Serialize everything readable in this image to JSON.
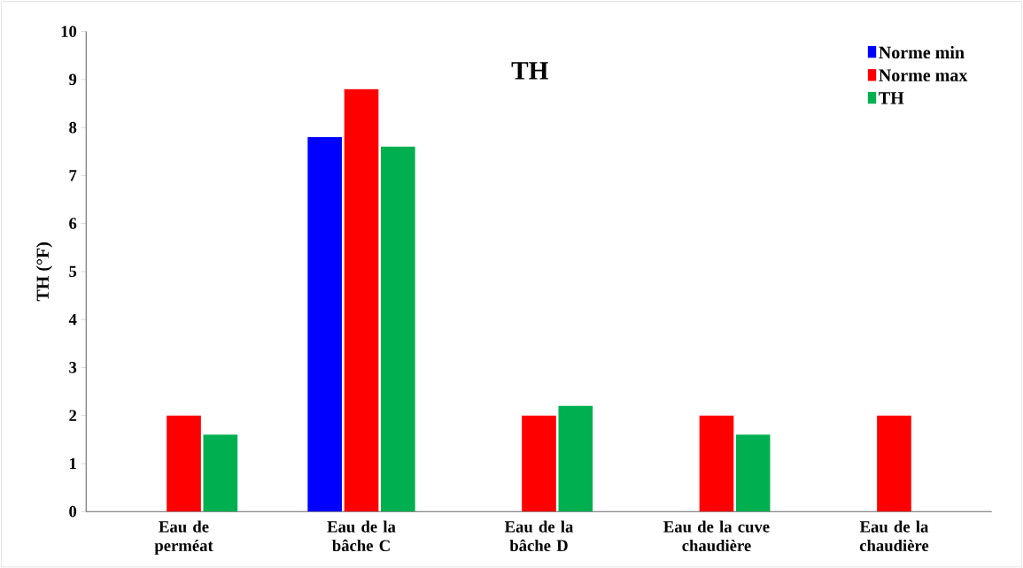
{
  "chart_data": {
    "type": "bar",
    "title": "TH",
    "ylabel": "TH (°F)",
    "categories": [
      "Eau de perméat",
      "Eau de la bâche C",
      "Eau de la bâche D",
      "Eau de la cuve chaudière",
      "Eau de la chaudière"
    ],
    "series": [
      {
        "name": "Norme min",
        "color": "#0000ff",
        "values": [
          null,
          7.8,
          null,
          null,
          null
        ]
      },
      {
        "name": "Norme max",
        "color": "#ff0000",
        "values": [
          2,
          8.8,
          2,
          2,
          2
        ]
      },
      {
        "name": "TH",
        "color": "#00b050",
        "values": [
          1.6,
          7.6,
          2.2,
          1.6,
          null
        ]
      }
    ],
    "ylim": [
      0,
      10
    ],
    "yticks": [
      0,
      1,
      2,
      3,
      4,
      5,
      6,
      7,
      8,
      9,
      10
    ],
    "grid": false,
    "legend": "top right"
  }
}
